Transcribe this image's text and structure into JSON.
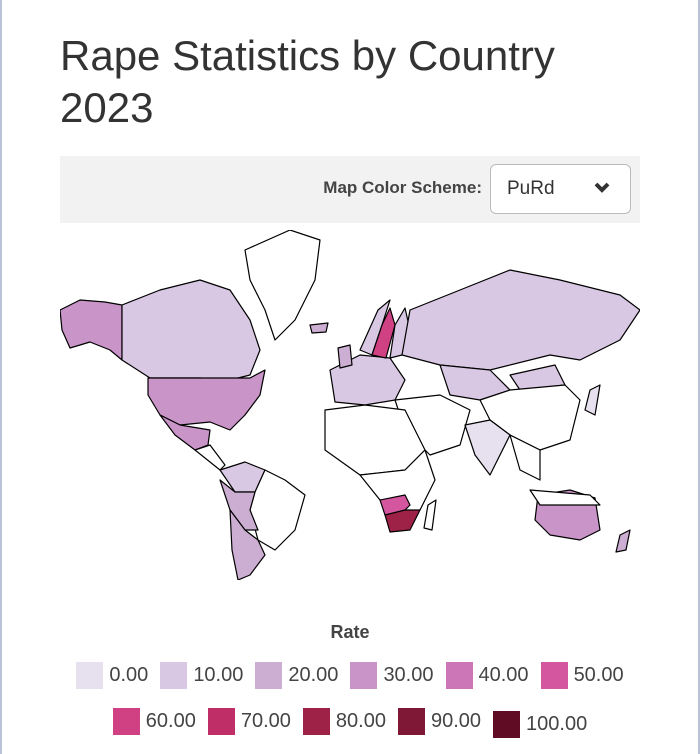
{
  "title": "Rape Statistics by Country 2023",
  "controls": {
    "label": "Map Color Scheme:",
    "selected": "PuRd",
    "chevron_icon": "chevron-down-icon"
  },
  "legend": {
    "title": "Rate",
    "items": [
      {
        "label": "0.00",
        "color": "#e7e1ef"
      },
      {
        "label": "10.00",
        "color": "#d9c8e3"
      },
      {
        "label": "20.00",
        "color": "#cdaed3"
      },
      {
        "label": "30.00",
        "color": "#c994c7"
      },
      {
        "label": "40.00",
        "color": "#cc76b7"
      },
      {
        "label": "50.00",
        "color": "#d4569e"
      },
      {
        "label": "60.00",
        "color": "#cf4183"
      },
      {
        "label": "70.00",
        "color": "#bf2e66"
      },
      {
        "label": "80.00",
        "color": "#9e2148"
      },
      {
        "label": "90.00",
        "color": "#7f1836"
      },
      {
        "label": "100.00",
        "color": "#610c25"
      }
    ]
  },
  "map": {
    "scheme": "PuRd",
    "no_data_color": "#ffffff",
    "regions": [
      {
        "id": "alaska",
        "rate": 30
      },
      {
        "id": "canada",
        "rate": 10
      },
      {
        "id": "greenland",
        "rate": null
      },
      {
        "id": "usa",
        "rate": 30
      },
      {
        "id": "mexico",
        "rate": 30
      },
      {
        "id": "central-america",
        "rate": null
      },
      {
        "id": "colombia-venezuela",
        "rate": 10
      },
      {
        "id": "brazil",
        "rate": null
      },
      {
        "id": "peru-bolivia",
        "rate": 20
      },
      {
        "id": "chile-argentina",
        "rate": 20
      },
      {
        "id": "western-europe",
        "rate": 10
      },
      {
        "id": "uk",
        "rate": 20
      },
      {
        "id": "norway",
        "rate": 10
      },
      {
        "id": "sweden",
        "rate": 60
      },
      {
        "id": "finland",
        "rate": 10
      },
      {
        "id": "russia",
        "rate": 10
      },
      {
        "id": "kazakhstan",
        "rate": 10
      },
      {
        "id": "mongolia",
        "rate": 10
      },
      {
        "id": "china",
        "rate": null
      },
      {
        "id": "middle-east",
        "rate": null
      },
      {
        "id": "india",
        "rate": 0
      },
      {
        "id": "southeast-asia",
        "rate": null
      },
      {
        "id": "north-africa",
        "rate": null
      },
      {
        "id": "central-africa",
        "rate": null
      },
      {
        "id": "botswana-namibia",
        "rate": 50
      },
      {
        "id": "south-africa",
        "rate": 80
      },
      {
        "id": "madagascar",
        "rate": null
      },
      {
        "id": "australia",
        "rate": 30
      },
      {
        "id": "japan",
        "rate": 0
      },
      {
        "id": "indonesia",
        "rate": null
      },
      {
        "id": "new-zealand",
        "rate": 20
      },
      {
        "id": "iceland",
        "rate": 20
      }
    ]
  }
}
